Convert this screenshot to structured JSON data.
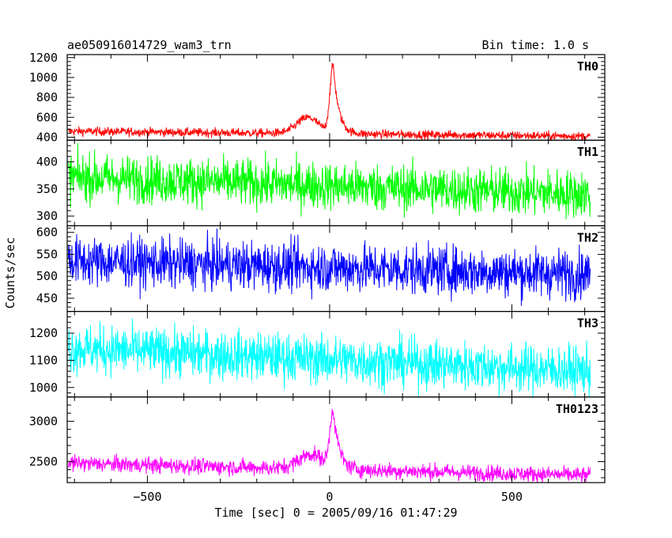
{
  "header": {
    "title": "ae050916014729_wam3_trn",
    "bin_time": "Bin time: 1.0 s"
  },
  "chart_data": {
    "type": "line",
    "xlabel": "Time [sec] 0 = 2005/09/16 01:47:29",
    "ylabel": "Counts/sec",
    "xlim": [
      -720,
      755
    ],
    "x_ticks": [
      -500,
      0,
      500
    ],
    "x_tick_labels": [
      "−500",
      "0",
      "500"
    ],
    "data_x_range": [
      -717,
      715
    ],
    "grid": false,
    "panels": [
      {
        "name": "TH0",
        "color": "#ff0000",
        "ylim": [
          370,
          1230
        ],
        "ticks": [
          400,
          600,
          800,
          1000,
          1200
        ],
        "baseline_start": 460,
        "baseline_end": 410,
        "noise": 22,
        "features": [
          {
            "t": -60,
            "amp": 160,
            "w": 30
          },
          {
            "t": 10,
            "amp": 680,
            "w": 9,
            "decay": 15
          }
        ]
      },
      {
        "name": "TH1",
        "color": "#00ff00",
        "ylim": [
          282,
          440
        ],
        "ticks": [
          300,
          350,
          400
        ],
        "baseline_start": 372,
        "baseline_end": 340,
        "noise": 22,
        "features": []
      },
      {
        "name": "TH2",
        "color": "#0000ff",
        "ylim": [
          420,
          615
        ],
        "ticks": [
          450,
          500,
          550,
          600
        ],
        "baseline_start": 535,
        "baseline_end": 505,
        "noise": 28,
        "features": []
      },
      {
        "name": "TH3",
        "color": "#00ffff",
        "ylim": [
          965,
          1280
        ],
        "ticks": [
          1000,
          1100,
          1200
        ],
        "baseline_start": 1145,
        "baseline_end": 1060,
        "noise": 45,
        "features": []
      },
      {
        "name": "TH0123",
        "color": "#ff00ff",
        "ylim": [
          2240,
          3300
        ],
        "ticks": [
          2500,
          3000
        ],
        "baseline_start": 2480,
        "baseline_end": 2330,
        "noise": 50,
        "features": [
          {
            "t": -50,
            "amp": 180,
            "w": 35
          },
          {
            "t": 10,
            "amp": 700,
            "w": 9,
            "decay": 16
          }
        ]
      }
    ]
  }
}
